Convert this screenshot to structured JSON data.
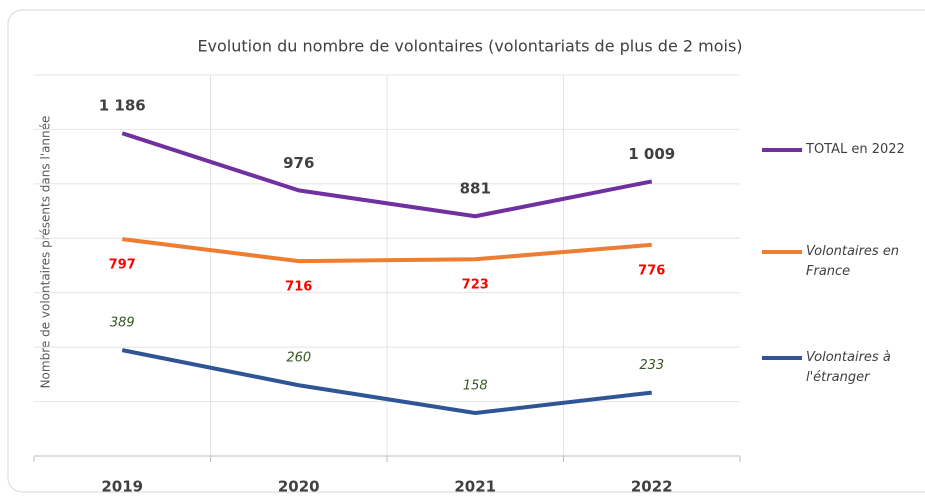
{
  "chart_data": {
    "type": "line",
    "title": "Evolution du nombre de volontaires (volontariats de plus de 2 mois)",
    "y_label": "Nombre  de volontaires présents dans l'année",
    "categories": [
      "2019",
      "2020",
      "2021",
      "2022"
    ],
    "series": [
      {
        "name": "TOTAL en 2022",
        "color": "#7030a0",
        "values": [
          1186,
          976,
          881,
          1009
        ],
        "value_labels": [
          "1 186",
          "976",
          "881",
          "1 009"
        ]
      },
      {
        "name": "Volontaires en France",
        "color": "#ed7d31",
        "values": [
          797,
          716,
          723,
          776
        ]
      },
      {
        "name": "Volontaires à l'étranger",
        "color": "#2f5597",
        "values": [
          389,
          260,
          158,
          233
        ]
      }
    ],
    "ylim": [
      0,
      1400
    ],
    "yticks": [
      0,
      200,
      400,
      600,
      800,
      1000,
      1200,
      1400
    ],
    "grid": true,
    "legend": "right"
  }
}
